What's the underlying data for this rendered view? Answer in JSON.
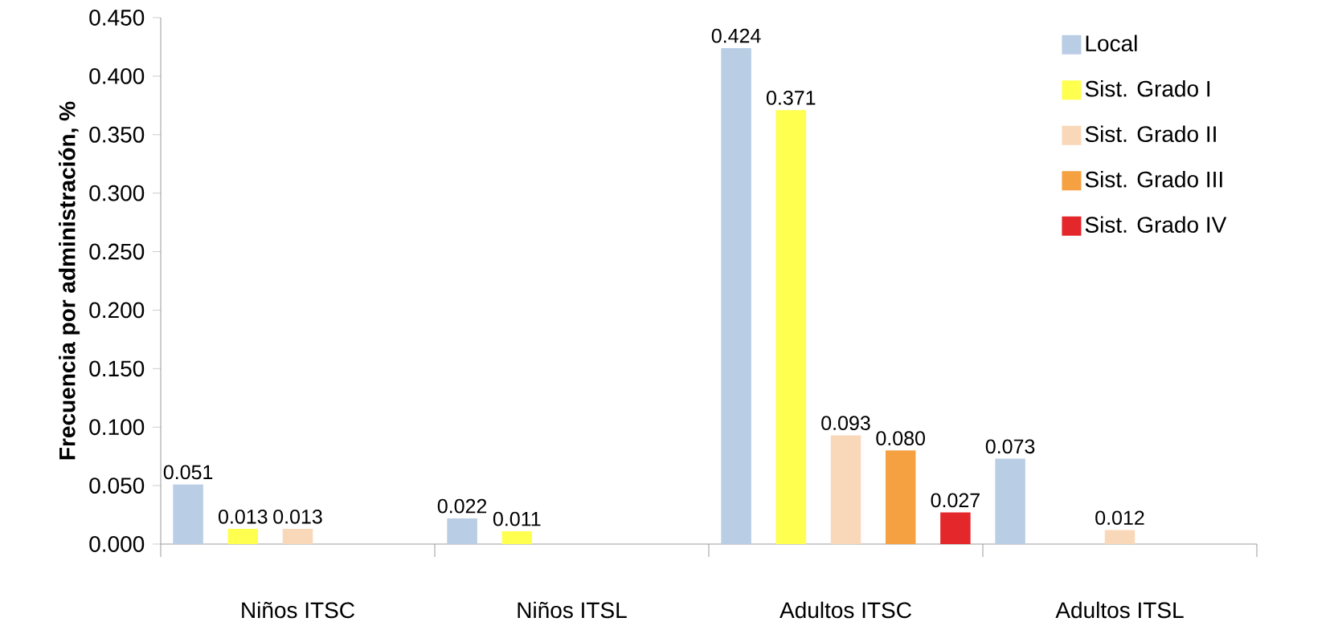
{
  "chart_data": {
    "type": "bar",
    "ylabel": "**Frecuencia por administración, %**",
    "categories": [
      "Niños ITSC",
      "Niños ITSL",
      "Adultos ITSC",
      "Adultos ITSL"
    ],
    "series": [
      {
        "name": "Local",
        "color": "#b9cde5",
        "values": [
          0.051,
          0.022,
          0.424,
          0.073
        ],
        "value_labels": [
          "0.051",
          "0.022",
          "0.424",
          "0.073"
        ]
      },
      {
        "name": "Sist. Grado I",
        "color": "#ffff4f",
        "values": [
          0.013,
          0.011,
          0.371,
          null
        ],
        "value_labels": [
          "0.013",
          "0.011",
          "0.371",
          null
        ]
      },
      {
        "name": "Sist. Grado II",
        "color": "#f9d8b9",
        "values": [
          0.013,
          null,
          0.093,
          0.012
        ],
        "value_labels": [
          "0.013",
          null,
          "0.093",
          "0.012"
        ]
      },
      {
        "name": "Sist. Grado III",
        "color": "#f5a142",
        "values": [
          null,
          null,
          0.08,
          null
        ],
        "value_labels": [
          null,
          null,
          "0.080",
          null
        ]
      },
      {
        "name": "Sist. Grado IV",
        "color": "#e3272a",
        "values": [
          null,
          null,
          0.027,
          null
        ],
        "value_labels": [
          null,
          null,
          "0.027",
          null
        ]
      }
    ],
    "ylim": [
      0,
      0.45
    ],
    "yticks": [
      {
        "value": 0,
        "label": "0.000"
      },
      {
        "value": 0.05,
        "label": "0.050"
      },
      {
        "value": 0.1,
        "label": "0.100"
      },
      {
        "value": 0.15,
        "label": "0.150"
      },
      {
        "value": 0.2,
        "label": "0.200"
      },
      {
        "value": 0.25,
        "label": "0.250"
      },
      {
        "value": 0.3,
        "label": "0.300"
      },
      {
        "value": 0.35,
        "label": "0.350"
      },
      {
        "value": 0.4,
        "label": "0.400"
      },
      {
        "value": 0.45,
        "label": "0.450"
      }
    ],
    "grid": false,
    "legend": "top right"
  }
}
